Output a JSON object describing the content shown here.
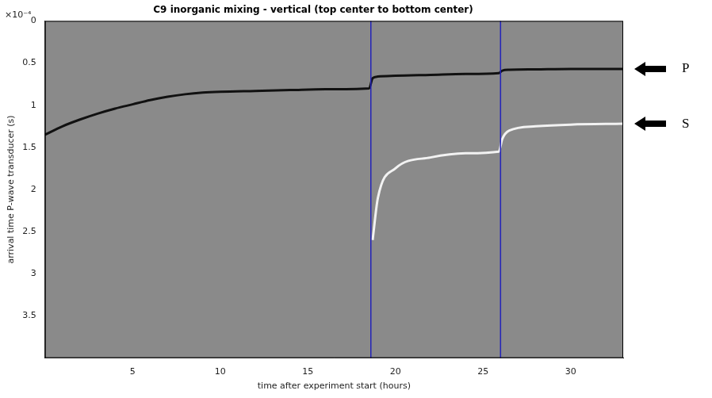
{
  "chart_data": {
    "type": "line",
    "title": "C9 inorganic mixing - vertical (top center to bottom center)",
    "x_label": "time after experiment start (hours)",
    "y_label": "arrival time P-wave transducer (s)",
    "y_multiplier": "×10⁻⁴",
    "x": [
      0,
      1,
      2,
      3,
      4,
      5,
      6,
      7,
      8,
      9,
      10,
      12,
      14,
      16,
      18.5,
      18.7,
      19,
      20,
      22,
      24,
      25.9,
      26.1,
      26.5,
      28,
      30,
      33
    ],
    "series": [
      {
        "name": "P",
        "color": "#111111",
        "values": [
          0.000135,
          0.000125,
          0.000117,
          0.00011,
          0.000104,
          9.9e-05,
          9.4e-05,
          9e-05,
          8.7e-05,
          8.5e-05,
          8.4e-05,
          8.3e-05,
          8.2e-05,
          8.1e-05,
          8e-05,
          6.8e-05,
          6.6e-05,
          6.5e-05,
          6.4e-05,
          6.3e-05,
          6.2e-05,
          5.9e-05,
          5.8e-05,
          5.75e-05,
          5.7e-05,
          5.7e-05
        ]
      },
      {
        "name": "S",
        "color": "#f2f2f2",
        "values": [
          null,
          null,
          null,
          null,
          null,
          null,
          null,
          null,
          null,
          null,
          null,
          null,
          null,
          null,
          null,
          0.00026,
          0.00021,
          0.000175,
          0.000162,
          0.000157,
          0.000155,
          0.00014,
          0.00013,
          0.000125,
          0.000123,
          0.000122
        ]
      }
    ],
    "vertical_lines": {
      "x": [
        18.6,
        26.0
      ],
      "color": "#2323b8"
    },
    "xlim": [
      0,
      33
    ],
    "xticks": [
      5,
      10,
      15,
      20,
      25,
      30
    ],
    "ylim": [
      0,
      0.0004
    ],
    "yticks": [
      0,
      {
        "value": 5e-05,
        "label": "0.5"
      },
      {
        "value": 0.0001,
        "label": "1"
      },
      {
        "value": 0.00015,
        "label": "1.5"
      },
      {
        "value": 0.0002,
        "label": "2"
      },
      {
        "value": 0.00025,
        "label": "2.5"
      },
      {
        "value": 0.0003,
        "label": "3"
      },
      {
        "value": 0.00035,
        "label": "3.5"
      }
    ],
    "grid": false
  }
}
